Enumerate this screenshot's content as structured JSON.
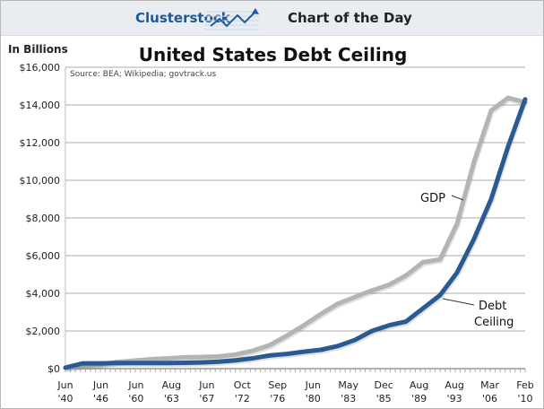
{
  "header": {
    "brand": "Clusterstock",
    "section": "Chart of the Day"
  },
  "chart_data": {
    "type": "line",
    "title": "United States Debt Ceiling",
    "ylabel": "In Billions",
    "source": "Source: BEA; Wikipedia; govtrack.us",
    "ylim": [
      0,
      16000
    ],
    "yticks": [
      "$0",
      "$2,000",
      "$4,000",
      "$6,000",
      "$8,000",
      "$10,000",
      "$12,000",
      "$14,000",
      "$16,000"
    ],
    "xtick_labels": [
      [
        "Jun",
        "'40"
      ],
      [
        "Jun",
        "'46"
      ],
      [
        "Jun",
        "'60"
      ],
      [
        "Aug",
        "'63"
      ],
      [
        "Jun",
        "'67"
      ],
      [
        "Oct",
        "'72"
      ],
      [
        "Sep",
        "'76"
      ],
      [
        "Jun",
        "'80"
      ],
      [
        "May",
        "'83"
      ],
      [
        "Dec",
        "'85"
      ],
      [
        "Aug",
        "'89"
      ],
      [
        "Aug",
        "'93"
      ],
      [
        "Mar",
        "'06"
      ],
      [
        "Feb",
        "'10"
      ]
    ],
    "grid": true,
    "series": [
      {
        "name": "GDP",
        "color": "#b4b4b4",
        "values": [
          50,
          150,
          200,
          350,
          420,
          500,
          550,
          600,
          620,
          650,
          750,
          950,
          1250,
          1750,
          2300,
          2900,
          3450,
          3800,
          4150,
          4450,
          4950,
          5650,
          5800,
          7700,
          11000,
          13700,
          14380,
          14140
        ]
      },
      {
        "name": "Debt Ceiling",
        "color": "#2a5a92",
        "values": [
          50,
          280,
          280,
          300,
          300,
          300,
          300,
          310,
          330,
          370,
          440,
          550,
          700,
          780,
          900,
          1000,
          1200,
          1520,
          2000,
          2300,
          2500,
          3200,
          3900,
          5100,
          6900,
          9000,
          11800,
          14300
        ]
      }
    ],
    "annotations": [
      {
        "text": "GDP",
        "series": "GDP"
      },
      {
        "text": [
          "Debt",
          "Ceiling"
        ],
        "series": "Debt Ceiling"
      }
    ]
  }
}
